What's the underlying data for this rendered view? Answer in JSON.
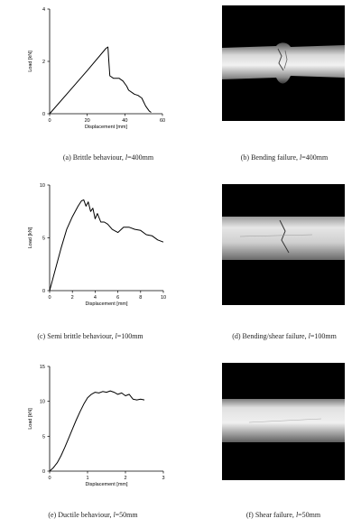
{
  "panels": [
    {
      "caption_prefix": "(a) Brittle behaviour, ",
      "caption_var": "l",
      "caption_suffix": "=400mm"
    },
    {
      "caption_prefix": "(b) Bending failure, ",
      "caption_var": "l",
      "caption_suffix": "=400mm"
    },
    {
      "caption_prefix": "(c) Semi brittle behaviour, ",
      "caption_var": "l",
      "caption_suffix": "=100mm"
    },
    {
      "caption_prefix": "(d) Bending/shear failure, ",
      "caption_var": "l",
      "caption_suffix": "=100mm"
    },
    {
      "caption_prefix": "(e) Ductile behaviour, ",
      "caption_var": "l",
      "caption_suffix": "=50mm"
    },
    {
      "caption_prefix": "(f) Shear failure, ",
      "caption_var": "l",
      "caption_suffix": "=50mm"
    }
  ],
  "chart_data": [
    {
      "type": "line",
      "xlabel": "Displacement [mm]",
      "ylabel": "Load [kN]",
      "xlim": [
        0,
        60
      ],
      "ylim": [
        0,
        4
      ],
      "xticks": [
        0,
        20,
        40,
        60
      ],
      "yticks": [
        0,
        2,
        4
      ],
      "grid": false,
      "x": [
        0,
        10,
        20,
        30,
        31,
        31.5,
        32,
        34,
        37,
        39,
        41,
        42,
        44,
        45,
        47,
        49,
        50,
        51,
        52,
        53,
        54
      ],
      "y": [
        0,
        0.82,
        1.65,
        2.5,
        2.55,
        2.0,
        1.45,
        1.35,
        1.35,
        1.25,
        1.05,
        0.9,
        0.8,
        0.75,
        0.7,
        0.6,
        0.45,
        0.3,
        0.2,
        0.1,
        0.05
      ]
    },
    {
      "type": "line",
      "xlabel": "Displacement [mm]",
      "ylabel": "Load [kN]",
      "xlim": [
        0,
        10
      ],
      "ylim": [
        0,
        10
      ],
      "xticks": [
        0,
        2,
        4,
        6,
        8,
        10
      ],
      "yticks": [
        0,
        5,
        10
      ],
      "grid": false,
      "x": [
        0,
        0.5,
        1,
        1.5,
        2,
        2.5,
        2.8,
        3.0,
        3.2,
        3.4,
        3.6,
        3.8,
        4.0,
        4.2,
        4.5,
        4.8,
        5.1,
        5.5,
        6.0,
        6.5,
        7.0,
        7.5,
        8.0,
        8.5,
        9.0,
        9.5,
        10.0
      ],
      "y": [
        0,
        2.0,
        4.0,
        5.8,
        7.0,
        8.0,
        8.5,
        8.6,
        8.0,
        8.4,
        7.5,
        7.8,
        6.8,
        7.3,
        6.5,
        6.5,
        6.3,
        5.8,
        5.5,
        6.0,
        6.0,
        5.8,
        5.7,
        5.3,
        5.2,
        4.8,
        4.6
      ]
    },
    {
      "type": "line",
      "xlabel": "Displacement [mm]",
      "ylabel": "Load [kN]",
      "xlim": [
        0,
        3
      ],
      "ylim": [
        0,
        15
      ],
      "xticks": [
        0,
        1,
        2,
        3
      ],
      "yticks": [
        0,
        5,
        10,
        15
      ],
      "grid": false,
      "x": [
        0,
        0.1,
        0.2,
        0.3,
        0.4,
        0.5,
        0.6,
        0.7,
        0.8,
        0.9,
        1.0,
        1.1,
        1.2,
        1.3,
        1.4,
        1.5,
        1.6,
        1.7,
        1.8,
        1.9,
        2.0,
        2.1,
        2.2,
        2.3,
        2.4,
        2.5
      ],
      "y": [
        0,
        0.5,
        1.2,
        2.2,
        3.4,
        4.7,
        6.0,
        7.3,
        8.5,
        9.6,
        10.5,
        11.0,
        11.3,
        11.2,
        11.4,
        11.3,
        11.5,
        11.3,
        11.0,
        11.2,
        10.8,
        11.0,
        10.3,
        10.2,
        10.3,
        10.2
      ]
    }
  ]
}
